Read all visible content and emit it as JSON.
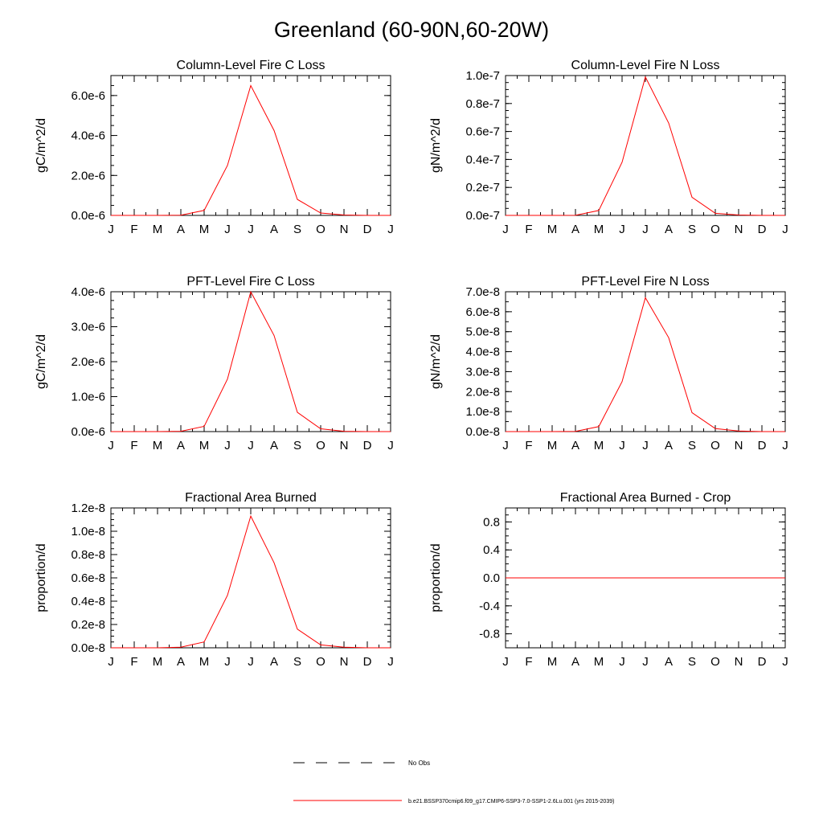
{
  "title": "Greenland (60-90N,60-20W)",
  "months": [
    "J",
    "F",
    "M",
    "A",
    "M",
    "J",
    "J",
    "A",
    "S",
    "O",
    "N",
    "D",
    "J"
  ],
  "colors": {
    "model": "#ff0000",
    "obs": "#000000",
    "axis": "#000000"
  },
  "legend": {
    "obs_label": "No Obs",
    "model_label": "b.e21.BSSP370cmip6.f09_g17.CMIP6-SSP3-7.0-SSP1-2.6Lu.001 (yrs 2015-2039)"
  },
  "chart_data": [
    {
      "type": "line",
      "title": "Column-Level Fire C Loss",
      "ylabel": "gC/m^2/d",
      "ylim": [
        0,
        7e-06
      ],
      "yticks": [
        0,
        2e-06,
        4e-06,
        6e-06
      ],
      "ytick_labels": [
        "0.0e-6",
        "2.0e-6",
        "4.0e-6",
        "6.0e-6"
      ],
      "yminor": 5e-07,
      "series": [
        {
          "values": [
            0,
            0,
            0,
            1e-08,
            2.5e-07,
            2.5e-06,
            6.5e-06,
            4.25e-06,
            8e-07,
            1.2e-07,
            2e-08,
            0,
            0
          ]
        }
      ]
    },
    {
      "type": "line",
      "title": "Column-Level Fire N Loss",
      "ylabel": "gN/m^2/d",
      "ylim": [
        0,
        1e-07
      ],
      "yticks": [
        0,
        2e-08,
        4e-08,
        6e-08,
        8e-08,
        1e-07
      ],
      "ytick_labels": [
        "0.0e-7",
        "0.2e-7",
        "0.4e-7",
        "0.6e-7",
        "0.8e-7",
        "1.0e-7"
      ],
      "yminor": 5e-09,
      "series": [
        {
          "values": [
            0,
            0,
            0,
            1e-10,
            3.5e-09,
            3.8e-08,
            9.9e-08,
            6.6e-08,
            1.3e-08,
            1.5e-09,
            3e-10,
            0,
            0
          ]
        }
      ]
    },
    {
      "type": "line",
      "title": "PFT-Level Fire C Loss",
      "ylabel": "gC/m^2/d",
      "ylim": [
        0,
        4e-06
      ],
      "yticks": [
        0,
        1e-06,
        2e-06,
        3e-06,
        4e-06
      ],
      "ytick_labels": [
        "0.0e-6",
        "1.0e-6",
        "2.0e-6",
        "3.0e-6",
        "4.0e-6"
      ],
      "yminor": 2.5e-07,
      "series": [
        {
          "values": [
            0,
            0,
            0,
            1e-08,
            1.5e-07,
            1.5e-06,
            4e-06,
            2.75e-06,
            5.5e-07,
            8e-08,
            1e-08,
            0,
            0
          ]
        }
      ]
    },
    {
      "type": "line",
      "title": "PFT-Level Fire N Loss",
      "ylabel": "gN/m^2/d",
      "ylim": [
        0,
        7e-08
      ],
      "yticks": [
        0,
        1e-08,
        2e-08,
        3e-08,
        4e-08,
        5e-08,
        6e-08,
        7e-08
      ],
      "ytick_labels": [
        "0.0e-8",
        "1.0e-8",
        "2.0e-8",
        "3.0e-8",
        "4.0e-8",
        "5.0e-8",
        "6.0e-8",
        "7.0e-8"
      ],
      "yminor": 5e-09,
      "series": [
        {
          "values": [
            0,
            0,
            0,
            1e-10,
            2.5e-09,
            2.5e-08,
            6.7e-08,
            4.7e-08,
            9.5e-09,
            1.5e-09,
            3e-10,
            0,
            0
          ]
        }
      ]
    },
    {
      "type": "line",
      "title": "Fractional Area Burned",
      "ylabel": "proportion/d",
      "ylim": [
        0,
        1.2e-08
      ],
      "yticks": [
        0,
        2e-09,
        4e-09,
        6e-09,
        8e-09,
        1e-08,
        1.2e-08
      ],
      "ytick_labels": [
        "0.0e-8",
        "0.2e-8",
        "0.4e-8",
        "0.6e-8",
        "0.8e-8",
        "1.0e-8",
        "1.2e-8"
      ],
      "yminor": 5e-10,
      "series": [
        {
          "values": [
            0,
            0,
            0,
            5e-11,
            5e-10,
            4.5e-09,
            1.13e-08,
            7.3e-09,
            1.6e-09,
            2.5e-10,
            5e-11,
            0,
            0
          ]
        }
      ]
    },
    {
      "type": "line",
      "title": "Fractional Area Burned - Crop",
      "ylabel": "proportion/d",
      "ylim": [
        -1.0,
        1.0
      ],
      "yticks": [
        -0.8,
        -0.4,
        0.0,
        0.4,
        0.8
      ],
      "ytick_labels": [
        "-0.8",
        "-0.4",
        "0.0",
        "0.4",
        "0.8"
      ],
      "yminor": 0.1,
      "series": [
        {
          "values": [
            0,
            0,
            0,
            0,
            0,
            0,
            0,
            0,
            0,
            0,
            0,
            0,
            0
          ]
        }
      ]
    }
  ]
}
